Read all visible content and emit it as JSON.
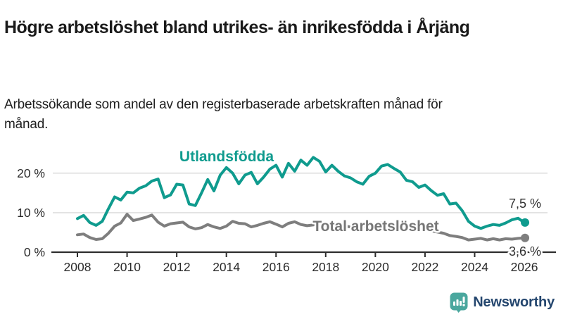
{
  "header": {
    "title": "Högre arbetslöshet bland utrikes- än inrikesfödda i Årjäng",
    "subtitle": "Arbetssökande som andel av den registerbaserade arbetskraften månad för månad."
  },
  "chart_data": {
    "type": "line",
    "title": "Högre arbetslöshet bland utrikes- än inrikesfödda i Årjäng",
    "xlabel": "",
    "ylabel": "Arbetssökande som andel av arbetskraften (%)",
    "x_unit": "decimal year (quarterly samples read from monthly curve)",
    "grid": "horizontal",
    "legend_position": "inline-labels",
    "xlim": [
      2007.5,
      2027.2
    ],
    "ylim": [
      0,
      26
    ],
    "xticks": [
      2008,
      2010,
      2012,
      2014,
      2016,
      2018,
      2020,
      2022,
      2024,
      2026
    ],
    "yticks": [
      {
        "value": 0,
        "label": "0 %"
      },
      {
        "value": 10,
        "label": "10 %"
      },
      {
        "value": 20,
        "label": "20 %"
      }
    ],
    "x": [
      2008.0,
      2008.25,
      2008.5,
      2008.75,
      2009.0,
      2009.25,
      2009.5,
      2009.75,
      2010.0,
      2010.25,
      2010.5,
      2010.75,
      2011.0,
      2011.25,
      2011.5,
      2011.75,
      2012.0,
      2012.25,
      2012.5,
      2012.75,
      2013.0,
      2013.25,
      2013.5,
      2013.75,
      2014.0,
      2014.25,
      2014.5,
      2014.75,
      2015.0,
      2015.25,
      2015.5,
      2015.75,
      2016.0,
      2016.25,
      2016.5,
      2016.75,
      2017.0,
      2017.25,
      2017.5,
      2017.75,
      2018.0,
      2018.25,
      2018.5,
      2018.75,
      2019.0,
      2019.25,
      2019.5,
      2019.75,
      2020.0,
      2020.25,
      2020.5,
      2020.75,
      2021.0,
      2021.25,
      2021.5,
      2021.75,
      2022.0,
      2022.25,
      2022.5,
      2022.75,
      2023.0,
      2023.25,
      2023.5,
      2023.75,
      2024.0,
      2024.25,
      2024.5,
      2024.75,
      2025.0,
      2025.25,
      2025.5,
      2025.75,
      2026.0
    ],
    "series": [
      {
        "name": "Utlandsfödda",
        "color": "#0f9b8e",
        "end_value": 7.5,
        "end_label": "7,5 %",
        "values": [
          8.5,
          9.3,
          7.5,
          6.8,
          7.8,
          11.0,
          14.0,
          13.2,
          15.2,
          15.0,
          16.2,
          16.8,
          18.0,
          18.5,
          13.8,
          14.5,
          17.2,
          17.0,
          12.2,
          11.8,
          15.0,
          18.4,
          15.5,
          19.5,
          21.4,
          20.0,
          17.3,
          19.5,
          20.2,
          17.3,
          19.0,
          21.0,
          22.0,
          19.0,
          22.5,
          20.5,
          23.3,
          22.0,
          24.0,
          23.0,
          20.3,
          22.0,
          20.5,
          19.3,
          18.8,
          17.8,
          17.2,
          19.2,
          20.0,
          21.8,
          22.2,
          21.2,
          20.3,
          18.2,
          17.8,
          16.4,
          17.0,
          15.6,
          14.4,
          14.8,
          12.2,
          12.4,
          10.5,
          7.8,
          6.6,
          6.0,
          6.6,
          7.0,
          6.8,
          7.4,
          8.2,
          8.6,
          7.5
        ]
      },
      {
        "name": "Total arbetslöshet",
        "color": "#7e7e7e",
        "end_value": 3.6,
        "end_label": "3,6 %",
        "values": [
          4.4,
          4.6,
          3.7,
          3.2,
          3.4,
          4.8,
          6.6,
          7.4,
          9.6,
          8.0,
          8.4,
          8.8,
          9.4,
          7.6,
          6.6,
          7.2,
          7.4,
          7.6,
          6.4,
          5.9,
          6.2,
          7.0,
          6.4,
          6.0,
          6.6,
          7.8,
          7.3,
          7.2,
          6.4,
          6.8,
          7.3,
          7.7,
          7.1,
          6.4,
          7.3,
          7.7,
          7.0,
          6.7,
          6.9,
          7.2,
          6.8,
          6.5,
          6.3,
          6.6,
          6.4,
          6.2,
          6.5,
          6.8,
          7.0,
          7.4,
          7.2,
          6.9,
          6.7,
          6.4,
          6.1,
          5.9,
          5.7,
          5.4,
          5.1,
          4.8,
          4.2,
          4.0,
          3.7,
          3.1,
          3.3,
          3.5,
          3.1,
          3.4,
          3.1,
          3.4,
          3.3,
          3.5,
          3.6
        ]
      }
    ],
    "style": {
      "grid_color": "#d8d8d8",
      "axis_color": "#2e2e2e",
      "tick_text_color": "#2b2b2b",
      "end_label_color": "#333333"
    }
  },
  "footer": {
    "brand": "Newsworthy",
    "logo_icon": "bar-chart-speech-bubble-icon",
    "logo_teal": "#4aa79e",
    "brand_navy": "#24466e"
  }
}
